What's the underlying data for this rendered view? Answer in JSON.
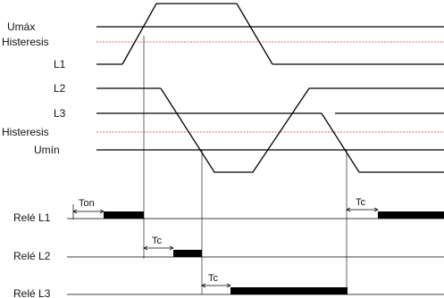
{
  "labels": {
    "umax": "Umáx",
    "hist_top": "Histeresis",
    "l1": "L1",
    "l2": "L2",
    "l3": "L3",
    "hist_bottom": "Histeresis",
    "umin": "Umín",
    "rele_l1": "Relé L1",
    "rele_l2": "Relé L2",
    "rele_l3": "Relé L3",
    "ton": "Ton",
    "tc1": "Tc",
    "tc2": "Tc",
    "tc3": "Tc"
  }
}
